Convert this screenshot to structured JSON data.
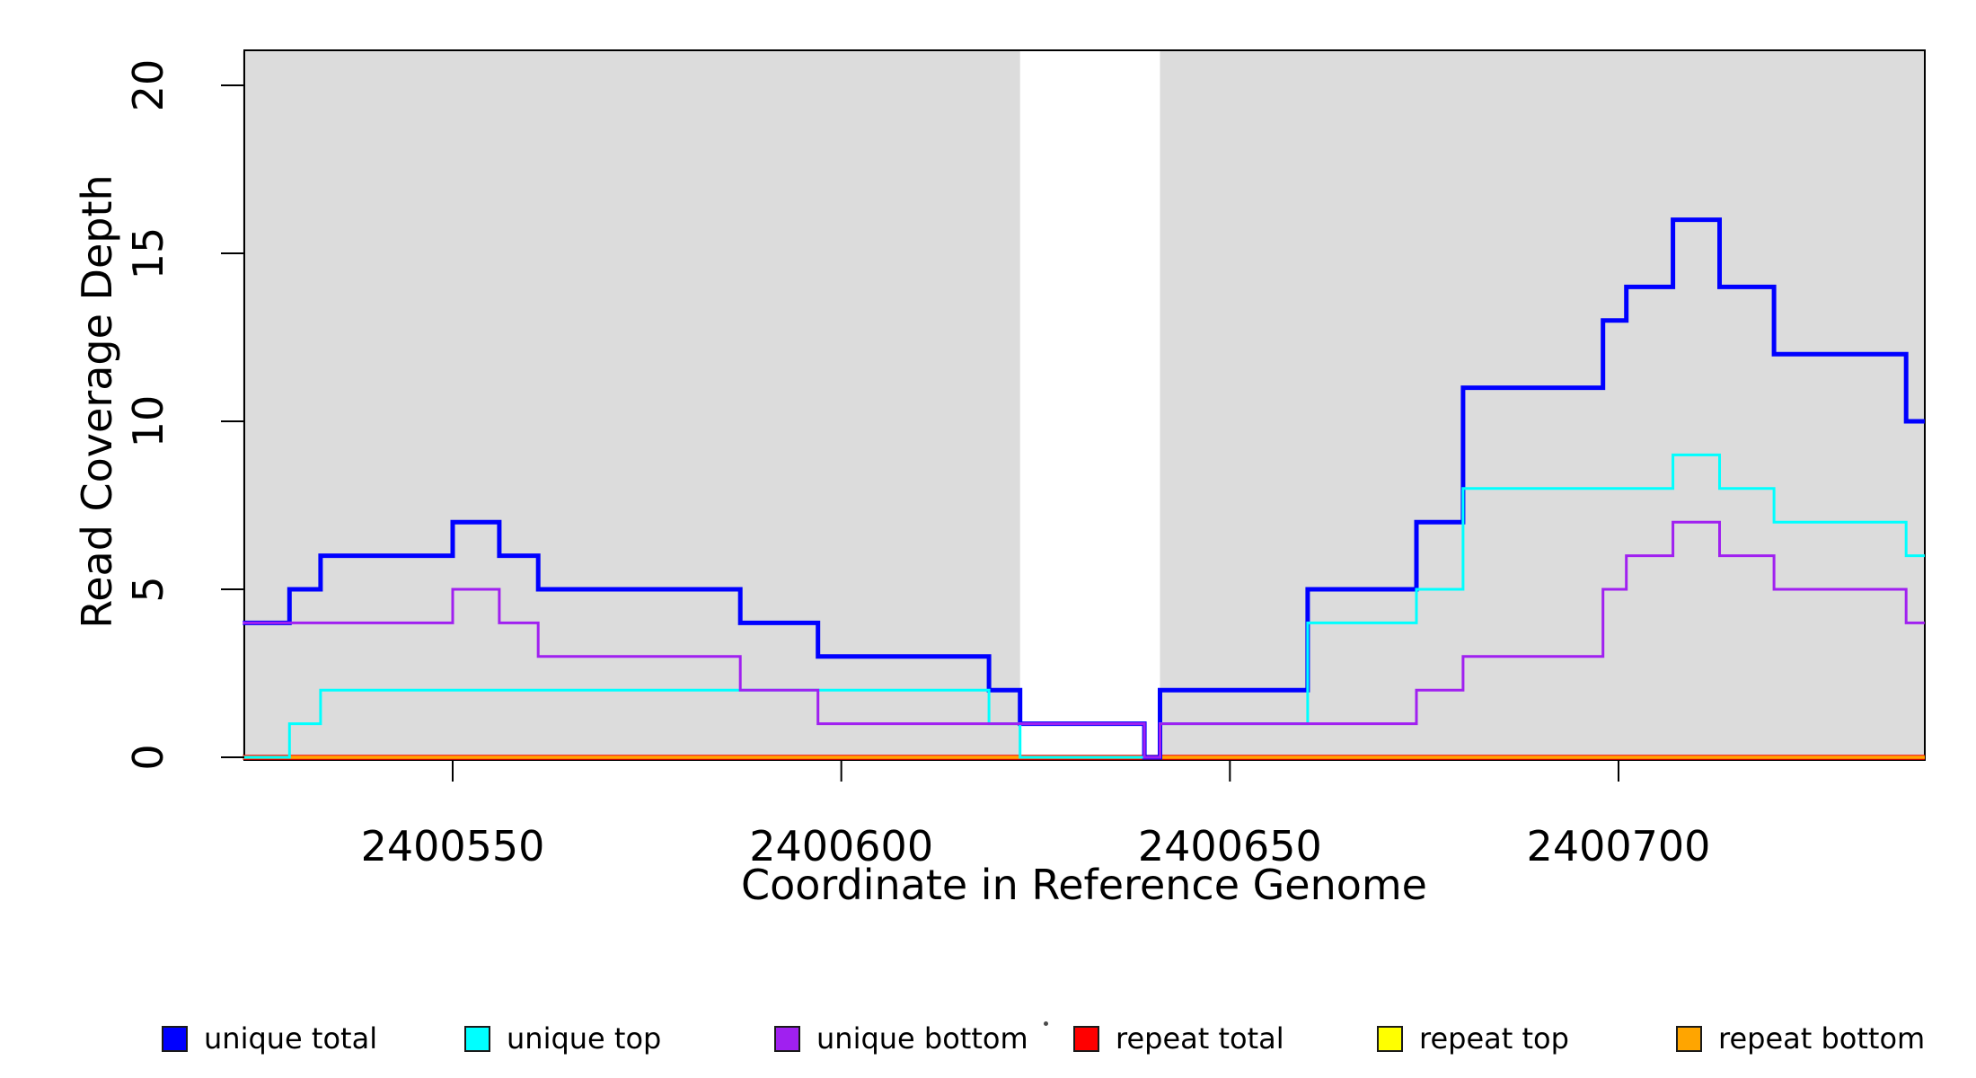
{
  "chart_data": {
    "type": "line",
    "step": true,
    "title": "",
    "xlabel": "Coordinate in Reference Genome",
    "ylabel": "Read Coverage Depth",
    "x_ticks": [
      2400550,
      2400600,
      2400650,
      2400700
    ],
    "y_ticks": [
      0,
      5,
      10,
      15,
      20
    ],
    "xlim": [
      2400523,
      2400739.4
    ],
    "ylim": [
      0,
      21
    ],
    "grid": false,
    "legend_position": "bottom",
    "shaded_regions": [
      {
        "x0": 2400523,
        "x1": 2400623,
        "color": "#DCDCDC"
      },
      {
        "x0": 2400641,
        "x1": 2400739.4,
        "color": "#DCDCDC"
      }
    ],
    "series": [
      {
        "name": "unique total",
        "color": "#0000FF",
        "line_width": 5,
        "start_value": 4,
        "changes": [
          [
            2400529,
            5
          ],
          [
            2400533,
            6
          ],
          [
            2400550,
            7
          ],
          [
            2400556,
            6
          ],
          [
            2400561,
            5
          ],
          [
            2400587,
            4
          ],
          [
            2400597,
            3
          ],
          [
            2400619,
            2
          ],
          [
            2400623,
            1
          ],
          [
            2400639,
            0
          ],
          [
            2400641,
            2
          ],
          [
            2400660,
            5
          ],
          [
            2400674,
            7
          ],
          [
            2400680,
            11
          ],
          [
            2400698,
            13
          ],
          [
            2400701,
            14
          ],
          [
            2400707,
            16
          ],
          [
            2400713,
            14
          ],
          [
            2400720,
            12
          ],
          [
            2400737,
            10
          ]
        ]
      },
      {
        "name": "unique top",
        "color": "#00FFFF",
        "line_width": 3,
        "start_value": 0,
        "changes": [
          [
            2400529,
            1
          ],
          [
            2400533,
            2
          ],
          [
            2400619,
            1
          ],
          [
            2400623,
            0
          ],
          [
            2400641,
            1
          ],
          [
            2400660,
            4
          ],
          [
            2400674,
            5
          ],
          [
            2400680,
            8
          ],
          [
            2400707,
            9
          ],
          [
            2400713,
            8
          ],
          [
            2400720,
            7
          ],
          [
            2400737,
            6
          ]
        ]
      },
      {
        "name": "unique bottom",
        "color": "#A020F0",
        "line_width": 3,
        "start_value": 4,
        "changes": [
          [
            2400550,
            5
          ],
          [
            2400556,
            4
          ],
          [
            2400561,
            3
          ],
          [
            2400587,
            2
          ],
          [
            2400597,
            1
          ],
          [
            2400639,
            0
          ],
          [
            2400641,
            1
          ],
          [
            2400674,
            2
          ],
          [
            2400680,
            3
          ],
          [
            2400698,
            5
          ],
          [
            2400701,
            6
          ],
          [
            2400707,
            7
          ],
          [
            2400713,
            6
          ],
          [
            2400720,
            5
          ],
          [
            2400737,
            4
          ]
        ]
      },
      {
        "name": "repeat total",
        "color": "#FF0000",
        "line_width": 5.5,
        "start_value": 0,
        "changes": []
      },
      {
        "name": "repeat top",
        "color": "#FFFF00",
        "line_width": 3,
        "start_value": 0,
        "changes": []
      },
      {
        "name": "repeat bottom",
        "color": "#FFA500",
        "line_width": 3.5,
        "start_value": 0,
        "changes": []
      }
    ]
  },
  "legend": {
    "items": [
      {
        "label": "unique total",
        "color": "#0000FF"
      },
      {
        "label": "unique top",
        "color": "#00FFFF"
      },
      {
        "label": "unique bottom",
        "color": "#A020F0"
      },
      {
        "label": "repeat total",
        "color": "#FF0000"
      },
      {
        "label": "repeat top",
        "color": "#FFFF00"
      },
      {
        "label": "repeat bottom",
        "color": "#FFA500"
      }
    ]
  }
}
